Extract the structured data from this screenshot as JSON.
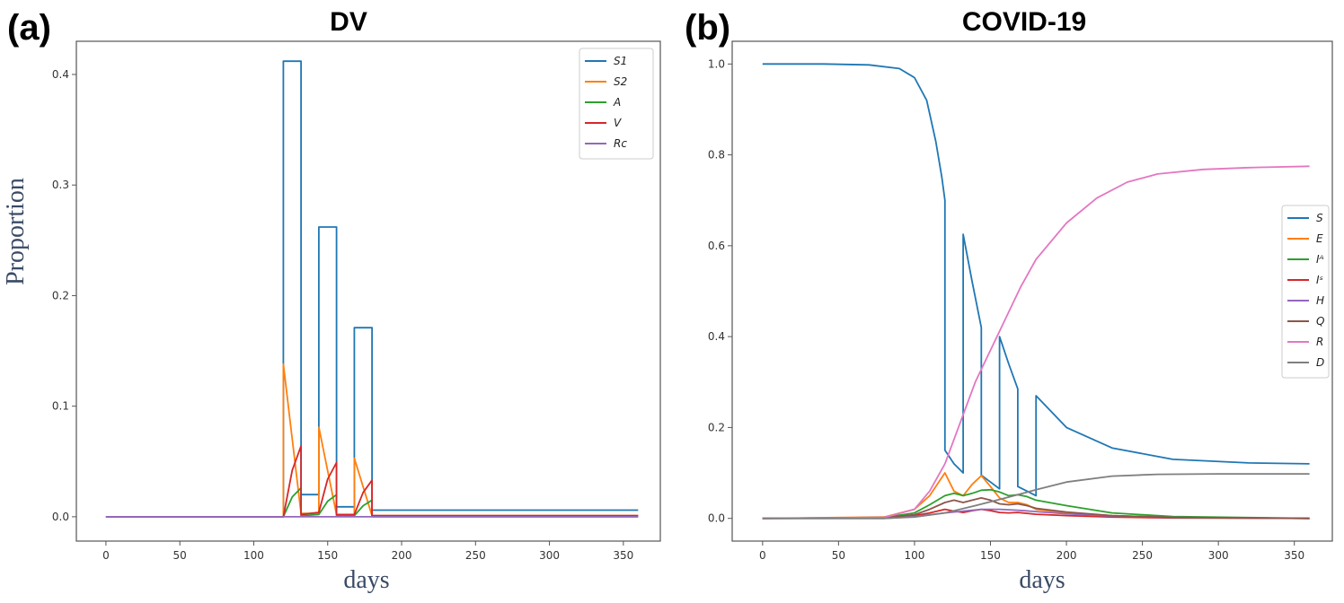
{
  "chart_data": [
    {
      "type": "line",
      "panel_label": "(a)",
      "title": "DV",
      "xlabel": "days",
      "ylabel": "Proportion",
      "xlim": [
        -20,
        375
      ],
      "ylim": [
        -0.022,
        0.43
      ],
      "xticks": [
        0,
        50,
        100,
        150,
        200,
        250,
        300,
        350
      ],
      "yticks": [
        0.0,
        0.1,
        0.2,
        0.3,
        0.4
      ],
      "ytick_labels": [
        "0.0",
        "0.1",
        "0.2",
        "0.3",
        "0.4"
      ],
      "legend_position": "top-right",
      "series": [
        {
          "name": "S1",
          "color": "#1f77b4",
          "x": [
            0,
            120,
            120,
            132,
            132,
            144,
            144,
            156,
            156,
            168,
            168,
            180,
            180,
            360
          ],
          "y": [
            0,
            0,
            0.412,
            0.412,
            0.02,
            0.02,
            0.262,
            0.262,
            0.009,
            0.009,
            0.171,
            0.171,
            0.006,
            0.006
          ]
        },
        {
          "name": "S2",
          "color": "#ff7f0e",
          "x": [
            0,
            120,
            120,
            132,
            132,
            144,
            144,
            156,
            156,
            168,
            168,
            180,
            180,
            360
          ],
          "y": [
            0,
            0,
            0.138,
            0.003,
            0.003,
            0.003,
            0.081,
            0.002,
            0.002,
            0.002,
            0.053,
            0.001,
            0.001,
            0.001
          ]
        },
        {
          "name": "A",
          "color": "#2ca02c",
          "x": [
            0,
            120,
            126,
            132,
            132,
            144,
            150,
            156,
            156,
            168,
            174,
            180,
            180,
            360
          ],
          "y": [
            0,
            0,
            0.018,
            0.026,
            0.001,
            0.002,
            0.014,
            0.02,
            0.001,
            0.001,
            0.01,
            0.015,
            0.0,
            0.0
          ]
        },
        {
          "name": "V",
          "color": "#d62728",
          "x": [
            0,
            120,
            126,
            132,
            132,
            144,
            150,
            156,
            156,
            168,
            174,
            180,
            180,
            360
          ],
          "y": [
            0,
            0,
            0.042,
            0.064,
            0.002,
            0.004,
            0.034,
            0.049,
            0.002,
            0.002,
            0.022,
            0.033,
            0.001,
            0.001
          ]
        },
        {
          "name": "Rc",
          "color": "#9467bd",
          "x": [
            0,
            360
          ],
          "y": [
            0,
            0
          ]
        }
      ]
    },
    {
      "type": "line",
      "panel_label": "(b)",
      "title": "COVID-19",
      "xlabel": "days",
      "ylabel": "",
      "xlim": [
        -20,
        375
      ],
      "ylim": [
        -0.05,
        1.05
      ],
      "xticks": [
        0,
        50,
        100,
        150,
        200,
        250,
        300,
        350
      ],
      "yticks": [
        0.0,
        0.2,
        0.4,
        0.6,
        0.8,
        1.0
      ],
      "ytick_labels": [
        "0.0",
        "0.2",
        "0.4",
        "0.6",
        "0.8",
        "1.0"
      ],
      "legend_position": "center-right",
      "series": [
        {
          "name": "S",
          "color": "#1f77b4",
          "x": [
            0,
            40,
            70,
            90,
            100,
            108,
            114,
            118,
            120,
            120,
            126,
            132,
            132,
            138,
            144,
            144,
            150,
            156,
            156,
            162,
            168,
            168,
            174,
            180,
            180,
            200,
            230,
            270,
            320,
            360
          ],
          "y": [
            1.0,
            1.0,
            0.998,
            0.99,
            0.97,
            0.92,
            0.83,
            0.75,
            0.7,
            0.15,
            0.12,
            0.1,
            0.625,
            0.52,
            0.42,
            0.095,
            0.08,
            0.065,
            0.4,
            0.34,
            0.285,
            0.07,
            0.06,
            0.05,
            0.27,
            0.2,
            0.155,
            0.13,
            0.122,
            0.12
          ]
        },
        {
          "name": "E",
          "color": "#ff7f0e",
          "x": [
            0,
            80,
            100,
            110,
            120,
            126,
            132,
            138,
            144,
            150,
            156,
            162,
            168,
            174,
            180,
            200,
            230,
            270,
            360
          ],
          "y": [
            0,
            0.003,
            0.02,
            0.05,
            0.1,
            0.06,
            0.05,
            0.075,
            0.094,
            0.07,
            0.045,
            0.035,
            0.035,
            0.03,
            0.02,
            0.012,
            0.006,
            0.002,
            0.0
          ]
        },
        {
          "name": "Iᴬ",
          "color": "#2ca02c",
          "x": [
            0,
            80,
            100,
            110,
            120,
            126,
            132,
            138,
            144,
            150,
            156,
            162,
            168,
            174,
            180,
            200,
            230,
            270,
            360
          ],
          "y": [
            0,
            0.002,
            0.012,
            0.03,
            0.05,
            0.055,
            0.05,
            0.055,
            0.062,
            0.063,
            0.058,
            0.05,
            0.052,
            0.048,
            0.04,
            0.028,
            0.012,
            0.004,
            0.0
          ]
        },
        {
          "name": "Iˢ",
          "color": "#d62728",
          "x": [
            0,
            80,
            100,
            110,
            120,
            126,
            132,
            138,
            144,
            150,
            156,
            162,
            168,
            174,
            180,
            200,
            230,
            270,
            360
          ],
          "y": [
            0,
            0.001,
            0.006,
            0.012,
            0.02,
            0.016,
            0.013,
            0.017,
            0.02,
            0.017,
            0.013,
            0.012,
            0.013,
            0.011,
            0.009,
            0.006,
            0.003,
            0.001,
            0.0
          ]
        },
        {
          "name": "H",
          "color": "#9467bd",
          "x": [
            0,
            80,
            100,
            120,
            132,
            144,
            156,
            168,
            180,
            200,
            230,
            270,
            360
          ],
          "y": [
            0,
            0.0,
            0.004,
            0.012,
            0.016,
            0.02,
            0.02,
            0.018,
            0.015,
            0.01,
            0.005,
            0.002,
            0.0
          ]
        },
        {
          "name": "Q",
          "color": "#8c564b",
          "x": [
            0,
            80,
            100,
            110,
            120,
            126,
            132,
            138,
            144,
            150,
            156,
            162,
            168,
            174,
            180,
            200,
            230,
            270,
            360
          ],
          "y": [
            0,
            0.001,
            0.008,
            0.02,
            0.035,
            0.04,
            0.035,
            0.04,
            0.045,
            0.04,
            0.032,
            0.03,
            0.032,
            0.028,
            0.022,
            0.014,
            0.006,
            0.002,
            0.0
          ]
        },
        {
          "name": "R",
          "color": "#e377c2",
          "x": [
            0,
            80,
            100,
            110,
            120,
            130,
            140,
            150,
            160,
            170,
            180,
            200,
            220,
            240,
            260,
            290,
            320,
            360
          ],
          "y": [
            0,
            0.002,
            0.02,
            0.06,
            0.12,
            0.21,
            0.3,
            0.37,
            0.44,
            0.51,
            0.57,
            0.65,
            0.705,
            0.74,
            0.758,
            0.768,
            0.772,
            0.775
          ]
        },
        {
          "name": "D",
          "color": "#7f7f7f",
          "x": [
            0,
            80,
            100,
            120,
            140,
            160,
            180,
            200,
            230,
            260,
            300,
            360
          ],
          "y": [
            0,
            0.0,
            0.003,
            0.012,
            0.028,
            0.045,
            0.063,
            0.08,
            0.093,
            0.097,
            0.098,
            0.098
          ]
        }
      ]
    }
  ]
}
